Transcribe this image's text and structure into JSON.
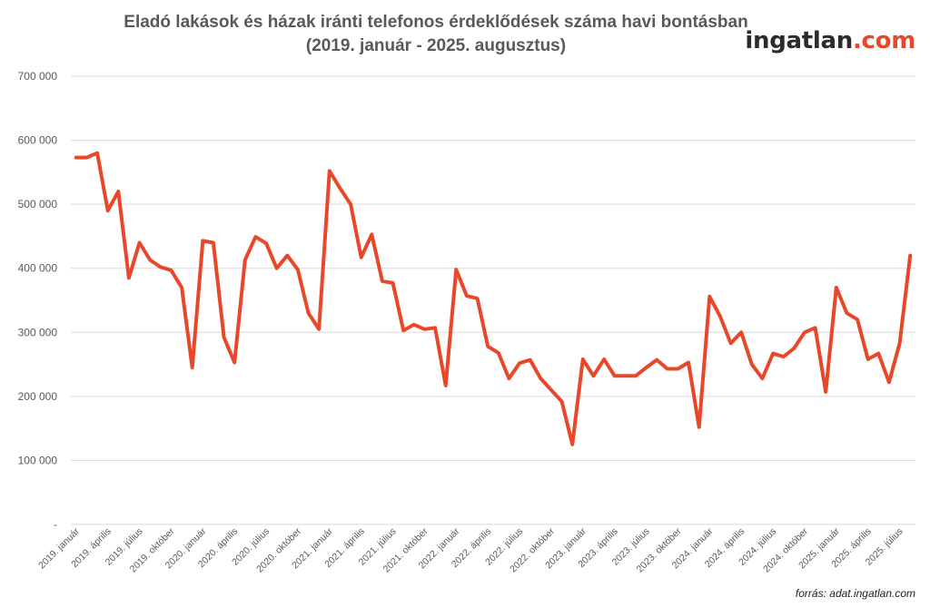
{
  "title_line1": "Eladó lakások és házak iránti telefonos érdeklődések száma havi bontásban",
  "title_line2": "(2019. január - 2025. augusztus)",
  "logo": {
    "part1": "ingatlan",
    "part2": ".com"
  },
  "source": "forrás: adat.ingatlan.com",
  "colors": {
    "line": "#e8472a",
    "grid": "#d9d9d9",
    "text": "#595959"
  },
  "chart_data": {
    "type": "line",
    "title": "Eladó lakások és házak iránti telefonos érdeklődések száma havi bontásban (2019. január - 2025. augusztus)",
    "ylim": [
      0,
      700000
    ],
    "yticks": [
      0,
      100000,
      200000,
      300000,
      400000,
      500000,
      600000,
      700000
    ],
    "ytick_labels": [
      "-",
      "100 000",
      "200 000",
      "300 000",
      "400 000",
      "500 000",
      "600 000",
      "700 000"
    ],
    "grid": true,
    "xtick_labels": [
      "2019. január",
      "2019. április",
      "2019. július",
      "2019. október",
      "2020. január",
      "2020. április",
      "2020. július",
      "2020. október",
      "2021. január",
      "2021. április",
      "2021. július",
      "2021. október",
      "2022. január",
      "2022. április",
      "2022. július",
      "2022. október",
      "2023. január",
      "2023. április",
      "2023. július",
      "2023. október",
      "2024. január",
      "2024. április",
      "2024. július",
      "2024. október",
      "2025. január",
      "2025. április",
      "2025. július"
    ],
    "series": [
      {
        "values": [
          573000,
          573000,
          580000,
          490000,
          520000,
          385000,
          440000,
          413000,
          402000,
          397000,
          370000,
          245000,
          443000,
          440000,
          292000,
          253000,
          413000,
          449000,
          439000,
          400000,
          420000,
          398000,
          330000,
          305000,
          552000,
          525000,
          500000,
          417000,
          453000,
          380000,
          377000,
          303000,
          312000,
          305000,
          307000,
          217000,
          398000,
          357000,
          353000,
          278000,
          268000,
          228000,
          252000,
          257000,
          228000,
          210000,
          192000,
          125000,
          258000,
          232000,
          258000,
          232000,
          232000,
          232000,
          245000,
          257000,
          243000,
          243000,
          253000,
          152000,
          356000,
          325000,
          283000,
          300000,
          250000,
          228000,
          267000,
          262000,
          275000,
          300000,
          307000,
          207000,
          370000,
          330000,
          320000,
          258000,
          267000,
          222000,
          283000,
          420000
        ]
      }
    ]
  }
}
